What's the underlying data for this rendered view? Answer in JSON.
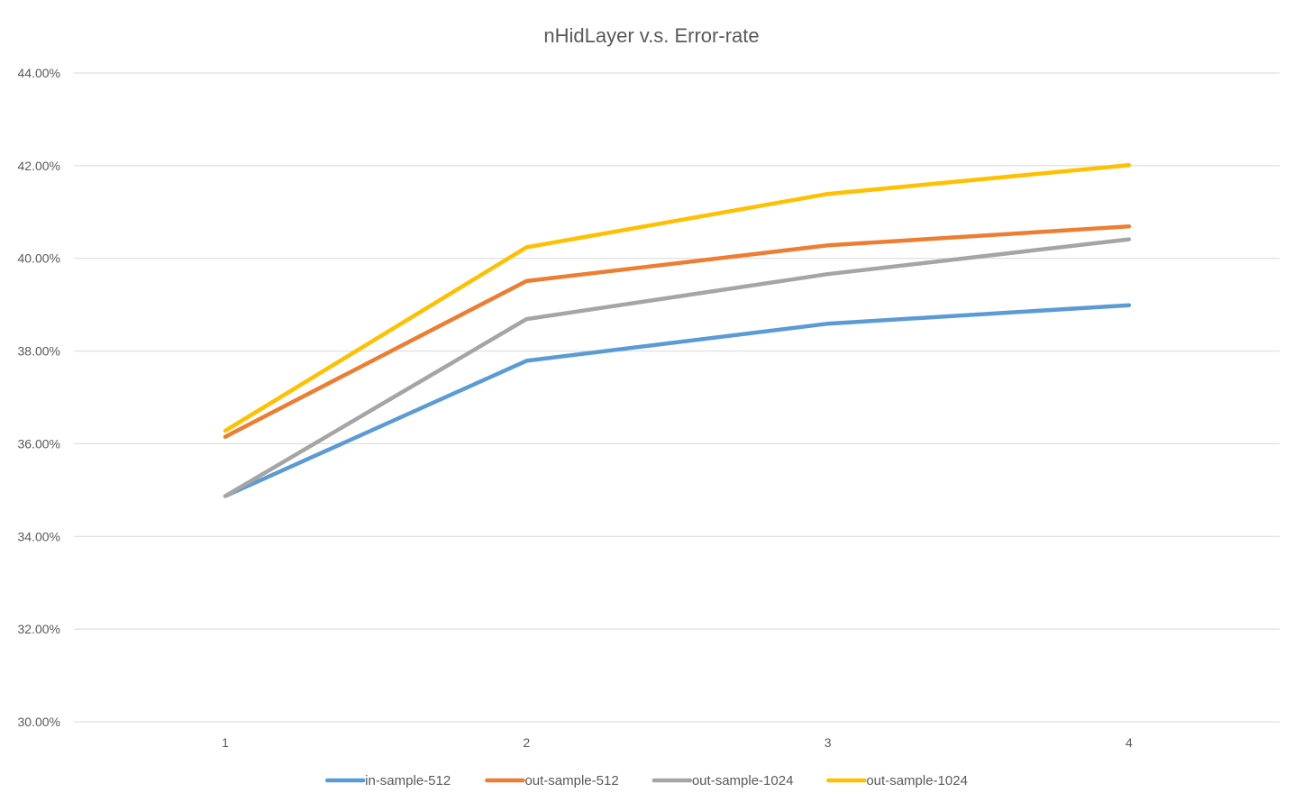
{
  "chart_data": {
    "type": "line",
    "title": "nHidLayer v.s. Error-rate",
    "xlabel": "",
    "ylabel": "",
    "categories": [
      "1",
      "2",
      "3",
      "4"
    ],
    "ylim": [
      0.3,
      0.44
    ],
    "yticks": [
      0.3,
      0.32,
      0.34,
      0.36,
      0.38,
      0.4,
      0.42,
      0.44
    ],
    "ytick_labels": [
      "30.00%",
      "32.00%",
      "34.00%",
      "36.00%",
      "38.00%",
      "40.00%",
      "42.00%",
      "44.00%"
    ],
    "grid": true,
    "legend_position": "bottom",
    "series": [
      {
        "name": "in-sample-512",
        "color": "#5b9bd5",
        "values": [
          0.3487,
          0.3779,
          0.3859,
          0.3899
        ]
      },
      {
        "name": "out-sample-512",
        "color": "#ed7d31",
        "values": [
          0.3615,
          0.3951,
          0.4028,
          0.4069
        ]
      },
      {
        "name": "out-sample-1024",
        "color": "#a5a5a5",
        "values": [
          0.3487,
          0.3869,
          0.3966,
          0.4041
        ]
      },
      {
        "name": "out-sample-1024",
        "color": "#ffc000",
        "values": [
          0.3628,
          0.4024,
          0.4139,
          0.4201
        ]
      }
    ]
  }
}
